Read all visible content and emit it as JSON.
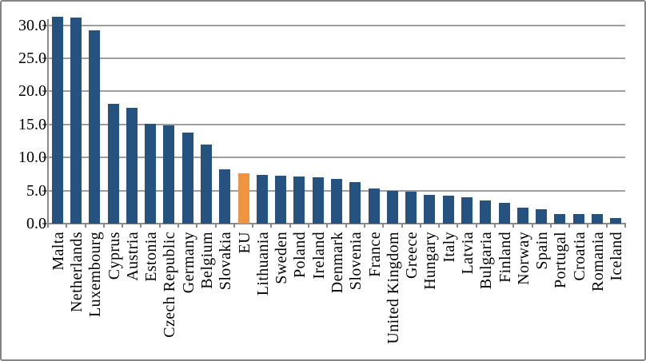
{
  "chart_data": {
    "type": "bar",
    "title": "",
    "xlabel": "",
    "ylabel": "",
    "categories": [
      "Malta",
      "Netherlands",
      "Luxembourg",
      "Cyprus",
      "Austria",
      "Estonia",
      "Czech Republic",
      "Germany",
      "Belgium",
      "Slovakia",
      "EU",
      "Lithuania",
      "Sweden",
      "Poland",
      "Ireland",
      "Denmark",
      "Slovenia",
      "France",
      "United Kingdom",
      "Greece",
      "Hungary",
      "Italy",
      "Latvia",
      "Bulgaria",
      "Finland",
      "Norway",
      "Spain",
      "Portugal",
      "Croatia",
      "Romania",
      "Iceland"
    ],
    "values": [
      31.3,
      31.2,
      29.2,
      18.1,
      17.5,
      15.1,
      14.9,
      13.8,
      12.0,
      8.2,
      7.6,
      7.4,
      7.2,
      7.1,
      7.0,
      6.8,
      6.3,
      5.3,
      4.9,
      4.8,
      4.4,
      4.2,
      4.0,
      3.5,
      3.2,
      2.4,
      2.2,
      1.5,
      1.4,
      1.4,
      0.9
    ],
    "highlight_category": "EU",
    "bars_exceed_top_gridline": [
      "Malta",
      "Netherlands"
    ],
    "yticks": [
      0,
      5,
      10,
      15,
      20,
      25,
      30
    ],
    "ytick_labels": [
      "0.0",
      "5.0",
      "10.0",
      "15.0",
      "20.0",
      "25.0",
      "30.0"
    ],
    "axis_max": 31.4,
    "grid": true,
    "legend": "none",
    "colors": {
      "bar": "#26527F",
      "highlight": "#F0953F",
      "gridline": "#9E9E9E",
      "axis": "#8A8A8A",
      "text": "#000000",
      "background": "#FFFFFF",
      "border": "#848484"
    }
  }
}
